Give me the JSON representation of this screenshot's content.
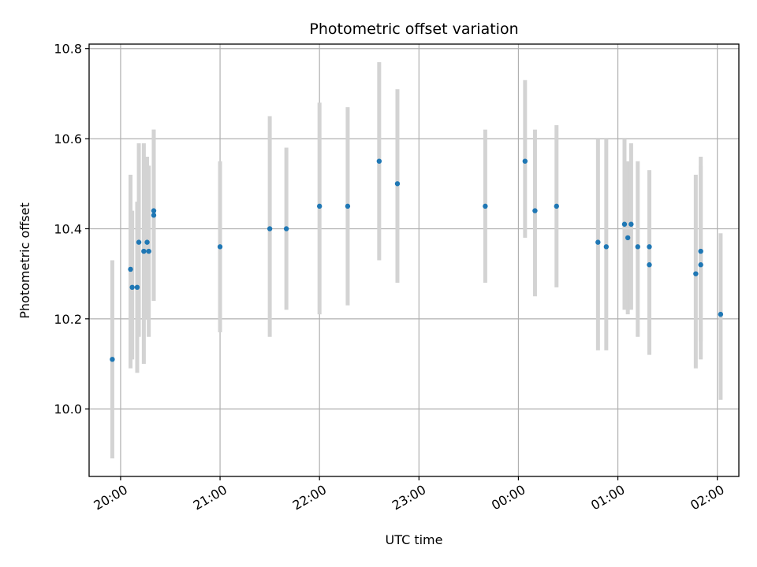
{
  "chart_data": {
    "type": "scatter",
    "title": "Photometric offset variation",
    "xlabel": "UTC time",
    "ylabel": "Photometric offset",
    "grid": true,
    "x_axis": {
      "kind": "time",
      "range_minutes_after_1900": [
        41,
        433
      ],
      "ticks": [
        {
          "label": "20:00",
          "minutes_after_1900": 60
        },
        {
          "label": "21:00",
          "minutes_after_1900": 120
        },
        {
          "label": "22:00",
          "minutes_after_1900": 180
        },
        {
          "label": "23:00",
          "minutes_after_1900": 240
        },
        {
          "label": "00:00",
          "minutes_after_1900": 300
        },
        {
          "label": "01:00",
          "minutes_after_1900": 360
        },
        {
          "label": "02:00",
          "minutes_after_1900": 420
        }
      ]
    },
    "y_axis": {
      "range": [
        9.85,
        10.81
      ],
      "ticks": [
        "10.0",
        "10.2",
        "10.4",
        "10.6",
        "10.8"
      ]
    },
    "colors": {
      "points": "#1f77b4",
      "errorbars": "#d3d3d3",
      "grid": "#b0b0b0"
    },
    "points": [
      {
        "t": "19:55",
        "y": 10.11,
        "lo": 9.89,
        "hi": 10.33
      },
      {
        "t": "20:06",
        "y": 10.31,
        "lo": 10.09,
        "hi": 10.52
      },
      {
        "t": "20:07",
        "y": 10.27,
        "lo": 10.11,
        "hi": 10.44
      },
      {
        "t": "20:10",
        "y": 10.27,
        "lo": 10.08,
        "hi": 10.46
      },
      {
        "t": "20:11",
        "y": 10.37,
        "lo": 10.16,
        "hi": 10.59
      },
      {
        "t": "20:14",
        "y": 10.35,
        "lo": 10.1,
        "hi": 10.59
      },
      {
        "t": "20:16",
        "y": 10.37,
        "lo": 10.2,
        "hi": 10.56
      },
      {
        "t": "20:17",
        "y": 10.35,
        "lo": 10.16,
        "hi": 10.54
      },
      {
        "t": "20:20",
        "y": 10.44,
        "lo": 10.24,
        "hi": 10.62
      },
      {
        "t": "20:20",
        "y": 10.43,
        "lo": 10.24,
        "hi": 10.62
      },
      {
        "t": "21:00",
        "y": 10.36,
        "lo": 10.17,
        "hi": 10.55
      },
      {
        "t": "21:30",
        "y": 10.4,
        "lo": 10.16,
        "hi": 10.65
      },
      {
        "t": "21:40",
        "y": 10.4,
        "lo": 10.22,
        "hi": 10.58
      },
      {
        "t": "22:00",
        "y": 10.45,
        "lo": 10.21,
        "hi": 10.68
      },
      {
        "t": "22:17",
        "y": 10.45,
        "lo": 10.23,
        "hi": 10.67
      },
      {
        "t": "22:36",
        "y": 10.55,
        "lo": 10.33,
        "hi": 10.77
      },
      {
        "t": "22:47",
        "y": 10.5,
        "lo": 10.28,
        "hi": 10.71
      },
      {
        "t": "23:40",
        "y": 10.45,
        "lo": 10.28,
        "hi": 10.62
      },
      {
        "t": "00:04",
        "y": 10.55,
        "lo": 10.38,
        "hi": 10.73
      },
      {
        "t": "00:10",
        "y": 10.44,
        "lo": 10.25,
        "hi": 10.62
      },
      {
        "t": "00:23",
        "y": 10.45,
        "lo": 10.27,
        "hi": 10.63
      },
      {
        "t": "00:48",
        "y": 10.37,
        "lo": 10.13,
        "hi": 10.6
      },
      {
        "t": "00:53",
        "y": 10.36,
        "lo": 10.13,
        "hi": 10.6
      },
      {
        "t": "01:04",
        "y": 10.41,
        "lo": 10.22,
        "hi": 10.6
      },
      {
        "t": "01:06",
        "y": 10.38,
        "lo": 10.21,
        "hi": 10.55
      },
      {
        "t": "01:08",
        "y": 10.41,
        "lo": 10.22,
        "hi": 10.59
      },
      {
        "t": "01:12",
        "y": 10.36,
        "lo": 10.16,
        "hi": 10.55
      },
      {
        "t": "01:19",
        "y": 10.36,
        "lo": 10.19,
        "hi": 10.53
      },
      {
        "t": "01:19",
        "y": 10.32,
        "lo": 10.12,
        "hi": 10.52
      },
      {
        "t": "01:47",
        "y": 10.3,
        "lo": 10.09,
        "hi": 10.52
      },
      {
        "t": "01:50",
        "y": 10.35,
        "lo": 10.15,
        "hi": 10.56
      },
      {
        "t": "01:50",
        "y": 10.32,
        "lo": 10.11,
        "hi": 10.54
      },
      {
        "t": "02:02",
        "y": 10.21,
        "lo": 10.02,
        "hi": 10.39
      }
    ]
  }
}
